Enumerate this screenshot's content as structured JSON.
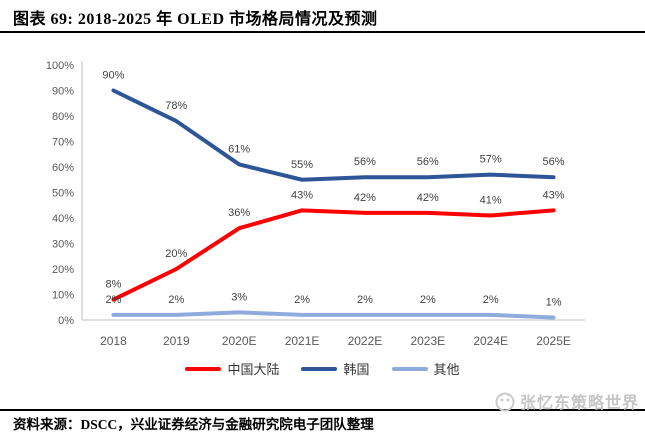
{
  "header": {
    "title": "图表 69: 2018-2025 年 OLED 市场格局情况及预测"
  },
  "footer": {
    "source": "资料来源：DSCC，兴业证券经济与金融研究院电子团队整理"
  },
  "watermark": {
    "text": "张忆东策略世界",
    "logo": "cat-face-logo"
  },
  "colors": {
    "china_red": "#ff0000",
    "korea_blue": "#2e5597",
    "others_blue": "#8faadc",
    "axis_gray": "#bfbfbf",
    "tick_gray": "#595959",
    "data_label_gray": "#3f3f3f"
  },
  "chart_data": {
    "type": "line",
    "title": "",
    "xlabel": "",
    "ylabel": "",
    "categories": [
      "2018",
      "2019",
      "2020E",
      "2021E",
      "2022E",
      "2023E",
      "2024E",
      "2025E"
    ],
    "series": [
      {
        "name": "中国大陆",
        "color": "#ff0000",
        "values": [
          8,
          20,
          36,
          43,
          42,
          42,
          41,
          43
        ]
      },
      {
        "name": "韩国",
        "color": "#2e5597",
        "values": [
          90,
          78,
          61,
          55,
          56,
          56,
          57,
          56
        ]
      },
      {
        "name": "其他",
        "color": "#8faadc",
        "values": [
          2,
          2,
          3,
          2,
          2,
          2,
          2,
          1
        ]
      }
    ],
    "ylim": [
      0,
      100
    ],
    "ytick_step": 10,
    "ytick_labels": [
      "0%",
      "10%",
      "20%",
      "30%",
      "40%",
      "50%",
      "60%",
      "70%",
      "80%",
      "90%",
      "100%"
    ],
    "data_labels": true,
    "data_label_format": "percent",
    "grid": false,
    "legend_position": "bottom",
    "axis_color": "#bfbfbf"
  }
}
